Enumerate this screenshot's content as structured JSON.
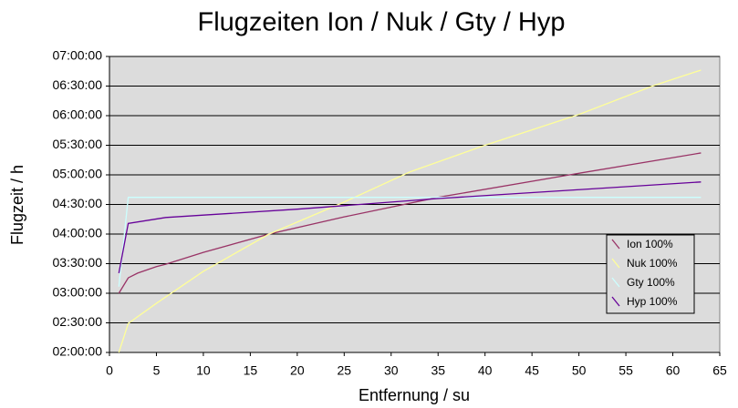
{
  "chart_data": {
    "type": "line",
    "title": "Flugzeiten Ion / Nuk / Gty / Hyp",
    "x_label": "Entfernung / su",
    "y_label": "Flugzeit / h",
    "xlim": [
      0,
      65
    ],
    "xticks": [
      0,
      5,
      10,
      15,
      20,
      25,
      30,
      35,
      40,
      45,
      50,
      55,
      60,
      65
    ],
    "ylim": [
      2,
      7
    ],
    "yticks": [
      {
        "value": 2,
        "label": "02:00:00"
      },
      {
        "value": 2.5,
        "label": "02:30:00"
      },
      {
        "value": 3,
        "label": "03:00:00"
      },
      {
        "value": 3.5,
        "label": "03:30:00"
      },
      {
        "value": 4,
        "label": "04:00:00"
      },
      {
        "value": 4.5,
        "label": "04:30:00"
      },
      {
        "value": 5,
        "label": "05:00:00"
      },
      {
        "value": 5.5,
        "label": "05:30:00"
      },
      {
        "value": 6,
        "label": "06:00:00"
      },
      {
        "value": 6.5,
        "label": "06:30:00"
      },
      {
        "value": 7,
        "label": "07:00:00"
      }
    ],
    "grid": true,
    "plot_background": "#dcdcdc",
    "series": [
      {
        "name": "Ion 100%",
        "color": "#993366",
        "x": [
          1,
          2,
          3,
          5,
          6,
          10,
          17,
          25,
          35,
          49,
          63
        ],
        "values": [
          3.0,
          3.26,
          3.34,
          3.45,
          3.49,
          3.69,
          4.0,
          4.29,
          4.62,
          5.0,
          5.37
        ]
      },
      {
        "name": "Nuk 100%",
        "color": "#ffff99",
        "x": [
          1,
          2,
          5,
          10,
          17,
          25,
          32,
          40,
          50,
          58,
          63
        ],
        "values": [
          2.0,
          2.49,
          2.83,
          3.37,
          4.0,
          4.54,
          5.05,
          5.5,
          6.02,
          6.51,
          6.77
        ]
      },
      {
        "name": "Gty 100%",
        "color": "#ccffff",
        "x": [
          1,
          2,
          63
        ],
        "values": [
          3.11,
          4.62,
          4.62
        ]
      },
      {
        "name": "Hyp 100%",
        "color": "#660099",
        "x": [
          1,
          2,
          6,
          10,
          20,
          35,
          50,
          63
        ],
        "values": [
          3.34,
          4.18,
          4.28,
          4.32,
          4.42,
          4.6,
          4.75,
          4.88
        ]
      }
    ]
  }
}
